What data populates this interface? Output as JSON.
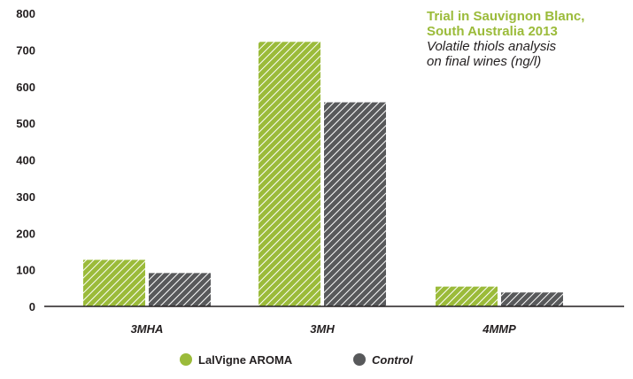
{
  "chart_data": {
    "type": "bar",
    "title": [
      "Trial in Sauvignon Blanc,",
      "South Australia 2013"
    ],
    "subtitle": [
      "Volatile thiols analysis",
      "on final wines (ng/l)"
    ],
    "categories": [
      "3MHA",
      "3MH",
      "4MMP"
    ],
    "series": [
      {
        "name": "LalVigne AROMA",
        "values": [
          127,
          722,
          54
        ],
        "color": "#9bbb3a"
      },
      {
        "name": "Control",
        "values": [
          91,
          557,
          38
        ],
        "color": "#58595b"
      }
    ],
    "ylim": [
      0,
      800
    ],
    "yticks": [
      0,
      100,
      200,
      300,
      400,
      500,
      600,
      700,
      800
    ],
    "grid": false,
    "legend_position": "bottom-center"
  }
}
